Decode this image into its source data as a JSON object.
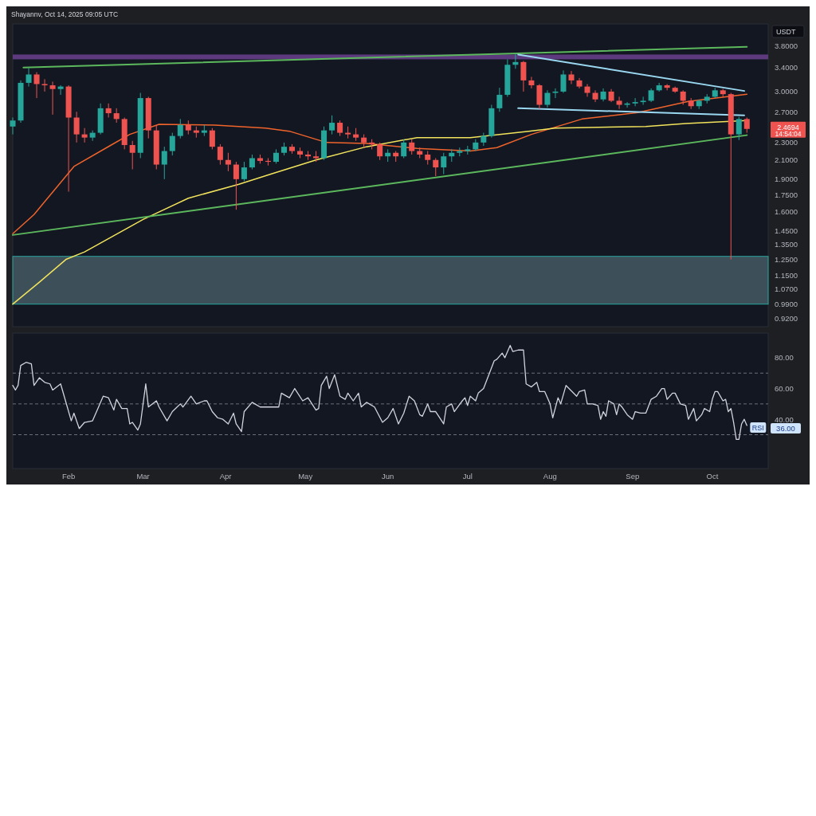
{
  "chart_data": [
    {
      "type": "candlestick",
      "ylabel": "USDT",
      "log": true,
      "tick_labels": "y",
      "ylim": [
        0.88,
        4.27
      ],
      "xlim": [
        "2025-01-11",
        "2025-10-22"
      ],
      "yticks": [
        {
          "value": 3.8,
          "label": "3.8000"
        },
        {
          "value": 3.4,
          "label": "3.4000"
        },
        {
          "value": 3.0,
          "label": "3.0000"
        },
        {
          "value": 2.7,
          "label": "2.7000"
        },
        {
          "value": 2.3,
          "label": "2.3000"
        },
        {
          "value": 2.1,
          "label": "2.1000"
        },
        {
          "value": 1.9,
          "label": "1.9000"
        },
        {
          "value": 1.75,
          "label": "1.7500"
        },
        {
          "value": 1.6,
          "label": "1.6000"
        },
        {
          "value": 1.45,
          "label": "1.4500"
        },
        {
          "value": 1.35,
          "label": "1.3500"
        },
        {
          "value": 1.25,
          "label": "1.2500"
        },
        {
          "value": 1.15,
          "label": "1.1500"
        },
        {
          "value": 1.07,
          "label": "1.0700"
        },
        {
          "value": 0.99,
          "label": "0.9900"
        },
        {
          "value": 0.92,
          "label": "0.9200"
        }
      ],
      "annotations": [
        "Shayannv, Oct 14, 2025 09:05 UTC",
        "2.4694",
        "14:54:04"
      ],
      "bands": [
        {
          "axis": "y",
          "from": 3.55,
          "to": 3.64,
          "color": "#5d3a7d"
        },
        {
          "axis": "y",
          "from": 0.99,
          "to": 1.27,
          "color": "#3d4f59"
        }
      ],
      "x": [
        "2025-01-11",
        "2025-01-14",
        "2025-01-17",
        "2025-01-20",
        "2025-01-23",
        "2025-01-26",
        "2025-01-29",
        "2025-02-01",
        "2025-02-04",
        "2025-02-07",
        "2025-02-10",
        "2025-02-13",
        "2025-02-16",
        "2025-02-19",
        "2025-02-22",
        "2025-02-25",
        "2025-02-28",
        "2025-03-03",
        "2025-03-06",
        "2025-03-09",
        "2025-03-12",
        "2025-03-15",
        "2025-03-18",
        "2025-03-21",
        "2025-03-24",
        "2025-03-27",
        "2025-03-30",
        "2025-04-02",
        "2025-04-05",
        "2025-04-08",
        "2025-04-11",
        "2025-04-14",
        "2025-04-17",
        "2025-04-20",
        "2025-04-23",
        "2025-04-26",
        "2025-04-29",
        "2025-05-02",
        "2025-05-05",
        "2025-05-08",
        "2025-05-11",
        "2025-05-14",
        "2025-05-17",
        "2025-05-20",
        "2025-05-23",
        "2025-05-26",
        "2025-05-29",
        "2025-06-01",
        "2025-06-04",
        "2025-06-07",
        "2025-06-10",
        "2025-06-13",
        "2025-06-16",
        "2025-06-19",
        "2025-06-22",
        "2025-06-25",
        "2025-06-28",
        "2025-07-01",
        "2025-07-04",
        "2025-07-07",
        "2025-07-10",
        "2025-07-13",
        "2025-07-16",
        "2025-07-19",
        "2025-07-22",
        "2025-07-25",
        "2025-07-28",
        "2025-07-31",
        "2025-08-03",
        "2025-08-06",
        "2025-08-09",
        "2025-08-12",
        "2025-08-15",
        "2025-08-18",
        "2025-08-21",
        "2025-08-24",
        "2025-08-27",
        "2025-08-30",
        "2025-09-02",
        "2025-09-05",
        "2025-09-08",
        "2025-09-11",
        "2025-09-14",
        "2025-09-17",
        "2025-09-20",
        "2025-09-23",
        "2025-09-26",
        "2025-09-29",
        "2025-10-02",
        "2025-10-05",
        "2025-10-08",
        "2025-10-11",
        "2025-10-14"
      ],
      "ohlc": [
        [
          2.5,
          2.62,
          2.4,
          2.58
        ],
        [
          2.58,
          3.18,
          2.55,
          3.14
        ],
        [
          3.14,
          3.39,
          3.08,
          3.28
        ],
        [
          3.28,
          3.32,
          2.9,
          3.12
        ],
        [
          3.12,
          3.2,
          3.0,
          3.1
        ],
        [
          3.1,
          3.16,
          2.66,
          3.04
        ],
        [
          3.04,
          3.1,
          2.95,
          3.08
        ],
        [
          3.08,
          3.1,
          1.78,
          2.62
        ],
        [
          2.62,
          2.7,
          2.3,
          2.4
        ],
        [
          2.4,
          2.48,
          2.3,
          2.36
        ],
        [
          2.36,
          2.45,
          2.32,
          2.42
        ],
        [
          2.42,
          2.82,
          2.4,
          2.75
        ],
        [
          2.75,
          2.82,
          2.62,
          2.68
        ],
        [
          2.68,
          2.75,
          2.55,
          2.6
        ],
        [
          2.6,
          2.62,
          2.22,
          2.27
        ],
        [
          2.27,
          2.32,
          2.0,
          2.18
        ],
        [
          2.18,
          2.98,
          2.12,
          2.9
        ],
        [
          2.9,
          2.92,
          2.35,
          2.45
        ],
        [
          2.45,
          2.52,
          2.0,
          2.05
        ],
        [
          2.05,
          2.25,
          1.9,
          2.2
        ],
        [
          2.2,
          2.42,
          2.15,
          2.38
        ],
        [
          2.38,
          2.6,
          2.35,
          2.52
        ],
        [
          2.52,
          2.58,
          2.4,
          2.45
        ],
        [
          2.45,
          2.5,
          2.36,
          2.42
        ],
        [
          2.42,
          2.52,
          2.38,
          2.45
        ],
        [
          2.45,
          2.48,
          2.22,
          2.25
        ],
        [
          2.25,
          2.28,
          2.05,
          2.1
        ],
        [
          2.1,
          2.18,
          1.98,
          2.05
        ],
        [
          2.05,
          2.08,
          1.62,
          1.9
        ],
        [
          1.9,
          2.08,
          1.88,
          2.02
        ],
        [
          2.02,
          2.16,
          2.0,
          2.12
        ],
        [
          2.12,
          2.16,
          2.06,
          2.09
        ],
        [
          2.09,
          2.12,
          2.04,
          2.08
        ],
        [
          2.08,
          2.22,
          2.06,
          2.18
        ],
        [
          2.18,
          2.3,
          2.15,
          2.25
        ],
        [
          2.25,
          2.28,
          2.17,
          2.2
        ],
        [
          2.2,
          2.24,
          2.12,
          2.16
        ],
        [
          2.16,
          2.2,
          2.1,
          2.14
        ],
        [
          2.14,
          2.2,
          2.08,
          2.12
        ],
        [
          2.12,
          2.5,
          2.1,
          2.45
        ],
        [
          2.45,
          2.65,
          2.4,
          2.55
        ],
        [
          2.55,
          2.58,
          2.38,
          2.42
        ],
        [
          2.42,
          2.5,
          2.35,
          2.4
        ],
        [
          2.4,
          2.48,
          2.32,
          2.36
        ],
        [
          2.36,
          2.4,
          2.24,
          2.3
        ],
        [
          2.3,
          2.34,
          2.22,
          2.28
        ],
        [
          2.28,
          2.3,
          2.1,
          2.14
        ],
        [
          2.14,
          2.22,
          2.08,
          2.18
        ],
        [
          2.18,
          2.2,
          2.08,
          2.14
        ],
        [
          2.14,
          2.34,
          2.12,
          2.3
        ],
        [
          2.3,
          2.34,
          2.16,
          2.2
        ],
        [
          2.2,
          2.24,
          2.12,
          2.16
        ],
        [
          2.16,
          2.2,
          2.05,
          2.1
        ],
        [
          2.1,
          2.12,
          1.93,
          2.02
        ],
        [
          2.02,
          2.18,
          1.95,
          2.14
        ],
        [
          2.14,
          2.22,
          2.08,
          2.18
        ],
        [
          2.18,
          2.24,
          2.14,
          2.2
        ],
        [
          2.2,
          2.26,
          2.16,
          2.22
        ],
        [
          2.22,
          2.34,
          2.2,
          2.3
        ],
        [
          2.3,
          2.42,
          2.26,
          2.38
        ],
        [
          2.38,
          2.8,
          2.36,
          2.75
        ],
        [
          2.75,
          3.06,
          2.7,
          2.95
        ],
        [
          2.95,
          3.55,
          2.92,
          3.45
        ],
        [
          3.45,
          3.65,
          3.38,
          3.5
        ],
        [
          3.5,
          3.52,
          3.0,
          3.18
        ],
        [
          3.18,
          3.24,
          3.05,
          3.1
        ],
        [
          3.1,
          3.12,
          2.74,
          2.8
        ],
        [
          2.8,
          3.02,
          2.76,
          2.98
        ],
        [
          2.98,
          3.05,
          2.9,
          3.0
        ],
        [
          3.0,
          3.35,
          2.98,
          3.28
        ],
        [
          3.28,
          3.34,
          3.12,
          3.18
        ],
        [
          3.18,
          3.22,
          3.05,
          3.08
        ],
        [
          3.08,
          3.12,
          2.92,
          2.98
        ],
        [
          2.98,
          3.02,
          2.84,
          2.88
        ],
        [
          2.88,
          3.05,
          2.85,
          3.0
        ],
        [
          3.0,
          3.04,
          2.84,
          2.86
        ],
        [
          2.86,
          2.92,
          2.74,
          2.8
        ],
        [
          2.8,
          2.84,
          2.76,
          2.82
        ],
        [
          2.82,
          2.9,
          2.78,
          2.84
        ],
        [
          2.84,
          2.92,
          2.8,
          2.86
        ],
        [
          2.86,
          3.05,
          2.84,
          3.02
        ],
        [
          3.02,
          3.14,
          3.0,
          3.1
        ],
        [
          3.1,
          3.12,
          3.02,
          3.06
        ],
        [
          3.06,
          3.08,
          2.98,
          3.0
        ],
        [
          3.0,
          3.02,
          2.8,
          2.86
        ],
        [
          2.86,
          2.9,
          2.74,
          2.78
        ],
        [
          2.78,
          2.88,
          2.74,
          2.86
        ],
        [
          2.86,
          2.96,
          2.82,
          2.92
        ],
        [
          2.92,
          3.06,
          2.9,
          3.02
        ],
        [
          3.02,
          3.04,
          2.92,
          2.96
        ],
        [
          2.96,
          2.98,
          1.25,
          2.4
        ],
        [
          2.4,
          2.63,
          2.33,
          2.6
        ],
        [
          2.6,
          2.62,
          2.42,
          2.4694
        ]
      ],
      "colors": [
        "#26a69a",
        "#26a69a",
        "#26a69a",
        "#ef5350",
        "#ef5350",
        "#ef5350",
        "#26a69a",
        "#ef5350",
        "#ef5350",
        "#ef5350",
        "#26a69a",
        "#26a69a",
        "#ef5350",
        "#ef5350",
        "#ef5350",
        "#ef5350",
        "#26a69a",
        "#ef5350",
        "#ef5350",
        "#26a69a",
        "#26a69a",
        "#26a69a",
        "#ef5350",
        "#ef5350",
        "#26a69a",
        "#ef5350",
        "#ef5350",
        "#ef5350",
        "#ef5350",
        "#26a69a",
        "#26a69a",
        "#ef5350",
        "#ef5350",
        "#26a69a",
        "#26a69a",
        "#ef5350",
        "#ef5350",
        "#ef5350",
        "#ef5350",
        "#26a69a",
        "#26a69a",
        "#ef5350",
        "#ef5350",
        "#ef5350",
        "#ef5350",
        "#ef5350",
        "#ef5350",
        "#26a69a",
        "#ef5350",
        "#26a69a",
        "#ef5350",
        "#ef5350",
        "#ef5350",
        "#ef5350",
        "#26a69a",
        "#26a69a",
        "#26a69a",
        "#26a69a",
        "#26a69a",
        "#26a69a",
        "#26a69a",
        "#26a69a",
        "#26a69a",
        "#26a69a",
        "#ef5350",
        "#ef5350",
        "#ef5350",
        "#26a69a",
        "#26a69a",
        "#26a69a",
        "#ef5350",
        "#ef5350",
        "#ef5350",
        "#ef5350",
        "#26a69a",
        "#ef5350",
        "#ef5350",
        "#26a69a",
        "#26a69a",
        "#26a69a",
        "#26a69a",
        "#26a69a",
        "#ef5350",
        "#ef5350",
        "#ef5350",
        "#ef5350",
        "#26a69a",
        "#26a69a",
        "#26a69a",
        "#ef5350",
        "#ef5350",
        "#26a69a",
        "#ef5350"
      ],
      "series": [
        {
          "type": "line",
          "color": "#f0642c",
          "x": [
            "2025-01-11",
            "2025-01-19",
            "2025-02-03",
            "2025-02-17",
            "2025-02-24",
            "2025-03-07",
            "2025-03-28",
            "2025-04-16",
            "2025-04-25",
            "2025-05-09",
            "2025-05-24",
            "2025-06-12",
            "2025-07-02",
            "2025-07-12",
            "2025-07-25",
            "2025-08-13",
            "2025-09-03",
            "2025-09-22",
            "2025-10-14"
          ],
          "values": [
            1.43,
            1.58,
            2.03,
            2.27,
            2.4,
            2.53,
            2.52,
            2.48,
            2.44,
            2.3,
            2.29,
            2.23,
            2.2,
            2.24,
            2.4,
            2.6,
            2.69,
            2.85,
            2.96
          ]
        },
        {
          "type": "line",
          "color": "#f2e35c",
          "x": [
            "2025-01-11",
            "2025-01-21",
            "2025-01-31",
            "2025-02-07",
            "2025-03-01",
            "2025-03-18",
            "2025-04-06",
            "2025-04-18",
            "2025-05-05",
            "2025-05-24",
            "2025-06-12",
            "2025-07-02",
            "2025-07-24",
            "2025-08-03",
            "2025-09-06",
            "2025-09-21",
            "2025-10-14"
          ],
          "values": [
            0.99,
            1.11,
            1.25,
            1.3,
            1.54,
            1.72,
            1.85,
            1.95,
            2.1,
            2.25,
            2.36,
            2.36,
            2.44,
            2.48,
            2.5,
            2.54,
            2.58
          ]
        },
        {
          "type": "line",
          "color": "#5cb85c",
          "x": [
            "2025-01-15",
            "2025-10-14"
          ],
          "values": [
            3.4,
            3.79
          ]
        },
        {
          "type": "line",
          "color": "#5cb85c",
          "x": [
            "2025-01-11",
            "2025-10-14"
          ],
          "values": [
            1.42,
            2.39
          ]
        },
        {
          "type": "line",
          "color": "#9ad7f0",
          "x": [
            "2025-07-20",
            "2025-10-13"
          ],
          "values": [
            3.64,
            3.01
          ]
        },
        {
          "type": "line",
          "color": "#9ad7f0",
          "x": [
            "2025-07-20",
            "2025-10-13"
          ],
          "values": [
            2.75,
            2.65
          ]
        }
      ]
    },
    {
      "type": "line",
      "ylim": [
        8,
        96
      ],
      "xlim": [
        "2025-01-11",
        "2025-10-22"
      ],
      "yticks": [
        {
          "value": 40,
          "label": "40.00"
        },
        {
          "value": 60,
          "label": "60.00"
        },
        {
          "value": 80,
          "label": "80.00"
        }
      ],
      "xticks": [
        {
          "value": "2025-02-01",
          "label": "Feb"
        },
        {
          "value": "2025-03-01",
          "label": "Mar"
        },
        {
          "value": "2025-04-01",
          "label": "Apr"
        },
        {
          "value": "2025-05-01",
          "label": "May"
        },
        {
          "value": "2025-06-01",
          "label": "Jun"
        },
        {
          "value": "2025-07-01",
          "label": "Jul"
        },
        {
          "value": "2025-08-01",
          "label": "Aug"
        },
        {
          "value": "2025-09-01",
          "label": "Sep"
        },
        {
          "value": "2025-10-01",
          "label": "Oct"
        }
      ],
      "ref_lines": [
        {
          "axis": "y",
          "value": 70,
          "line_style": "dashed",
          "color": "#6b6f7a"
        },
        {
          "axis": "y",
          "value": 50,
          "line_style": "dashed",
          "color": "#6b6f7a"
        },
        {
          "axis": "y",
          "value": 30,
          "line_style": "dashed",
          "color": "#6b6f7a"
        }
      ],
      "annotations": [
        "36.00"
      ],
      "series": [
        {
          "name": "RSI",
          "color": "#d1d4dc",
          "x": [
            "2025-01-11",
            "2025-01-12",
            "2025-01-13",
            "2025-01-14",
            "2025-01-16",
            "2025-01-18",
            "2025-01-19",
            "2025-01-21",
            "2025-01-23",
            "2025-01-25",
            "2025-01-26",
            "2025-01-29",
            "2025-02-02",
            "2025-02-03",
            "2025-02-05",
            "2025-02-07",
            "2025-02-10",
            "2025-02-12",
            "2025-02-14",
            "2025-02-16",
            "2025-02-18",
            "2025-02-19",
            "2025-02-21",
            "2025-02-23",
            "2025-02-24",
            "2025-02-25",
            "2025-02-27",
            "2025-02-28",
            "2025-03-02",
            "2025-03-03",
            "2025-03-06",
            "2025-03-07",
            "2025-03-10",
            "2025-03-12",
            "2025-03-15",
            "2025-03-16",
            "2025-03-19",
            "2025-03-21",
            "2025-03-24",
            "2025-03-25",
            "2025-03-27",
            "2025-03-29",
            "2025-03-31",
            "2025-04-02",
            "2025-04-04",
            "2025-04-05",
            "2025-04-07",
            "2025-04-08",
            "2025-04-11",
            "2025-04-14",
            "2025-04-18",
            "2025-04-21",
            "2025-04-22",
            "2025-04-25",
            "2025-04-27",
            "2025-04-30",
            "2025-05-02",
            "2025-05-05",
            "2025-05-06",
            "2025-05-07",
            "2025-05-09",
            "2025-05-10",
            "2025-05-12",
            "2025-05-14",
            "2025-05-16",
            "2025-05-17",
            "2025-05-19",
            "2025-05-21",
            "2025-05-22",
            "2025-05-24",
            "2025-05-27",
            "2025-05-30",
            "2025-06-01",
            "2025-06-03",
            "2025-06-05",
            "2025-06-07",
            "2025-06-09",
            "2025-06-11",
            "2025-06-13",
            "2025-06-14",
            "2025-06-16",
            "2025-06-17",
            "2025-06-19",
            "2025-06-22",
            "2025-06-23",
            "2025-06-25",
            "2025-06-26",
            "2025-06-29",
            "2025-06-30",
            "2025-07-01",
            "2025-07-02",
            "2025-07-04",
            "2025-07-05",
            "2025-07-07",
            "2025-07-11",
            "2025-07-12",
            "2025-07-14",
            "2025-07-15",
            "2025-07-17",
            "2025-07-18",
            "2025-07-20",
            "2025-07-22",
            "2025-07-23",
            "2025-07-25",
            "2025-07-27",
            "2025-07-28",
            "2025-07-30",
            "2025-08-01",
            "2025-08-02",
            "2025-08-04",
            "2025-08-05",
            "2025-08-07",
            "2025-08-11",
            "2025-08-12",
            "2025-08-14",
            "2025-08-15",
            "2025-08-17",
            "2025-08-19",
            "2025-08-20",
            "2025-08-21",
            "2025-08-22",
            "2025-08-23",
            "2025-08-25",
            "2025-08-26",
            "2025-08-27",
            "2025-08-28",
            "2025-08-30",
            "2025-09-01",
            "2025-09-02",
            "2025-09-04",
            "2025-09-06",
            "2025-09-08",
            "2025-09-10",
            "2025-09-12",
            "2025-09-13",
            "2025-09-14",
            "2025-09-16",
            "2025-09-17",
            "2025-09-19",
            "2025-09-21",
            "2025-09-22",
            "2025-09-24",
            "2025-09-25",
            "2025-09-27",
            "2025-09-28",
            "2025-09-30",
            "2025-10-01",
            "2025-10-02",
            "2025-10-03",
            "2025-10-05",
            "2025-10-06",
            "2025-10-07",
            "2025-10-08",
            "2025-10-09",
            "2025-10-10",
            "2025-10-11",
            "2025-10-12",
            "2025-10-13",
            "2025-10-14"
          ],
          "values": [
            62,
            59,
            62,
            75,
            77,
            76,
            62,
            67,
            64,
            63,
            59,
            63,
            39,
            44,
            34,
            38,
            39,
            47,
            55,
            54,
            46,
            53,
            47,
            47,
            37,
            38,
            33,
            37,
            63,
            48,
            52,
            48,
            39,
            45,
            50,
            48,
            55,
            50,
            52,
            52,
            45,
            41,
            40,
            37,
            44,
            37,
            32,
            45,
            51,
            48,
            48,
            48,
            57,
            54,
            60,
            52,
            54,
            46,
            47,
            62,
            68,
            60,
            69,
            55,
            53,
            57,
            52,
            57,
            48,
            51,
            48,
            38,
            41,
            47,
            37,
            44,
            55,
            52,
            43,
            42,
            50,
            45,
            45,
            37,
            48,
            50,
            45,
            52,
            54,
            49,
            55,
            52,
            57,
            60,
            78,
            79,
            83,
            80,
            88,
            84,
            85,
            85,
            63,
            61,
            64,
            58,
            58,
            50,
            41,
            54,
            50,
            62,
            55,
            58,
            59,
            50,
            50,
            49,
            40,
            45,
            42,
            52,
            50,
            43,
            50,
            48,
            43,
            40,
            45,
            44,
            44,
            53,
            55,
            60,
            60,
            53,
            57,
            57,
            50,
            49,
            40,
            47,
            39,
            43,
            47,
            45,
            53,
            58,
            58,
            52,
            53,
            45,
            47,
            38,
            27,
            27,
            37,
            40,
            36
          ]
        }
      ]
    }
  ]
}
